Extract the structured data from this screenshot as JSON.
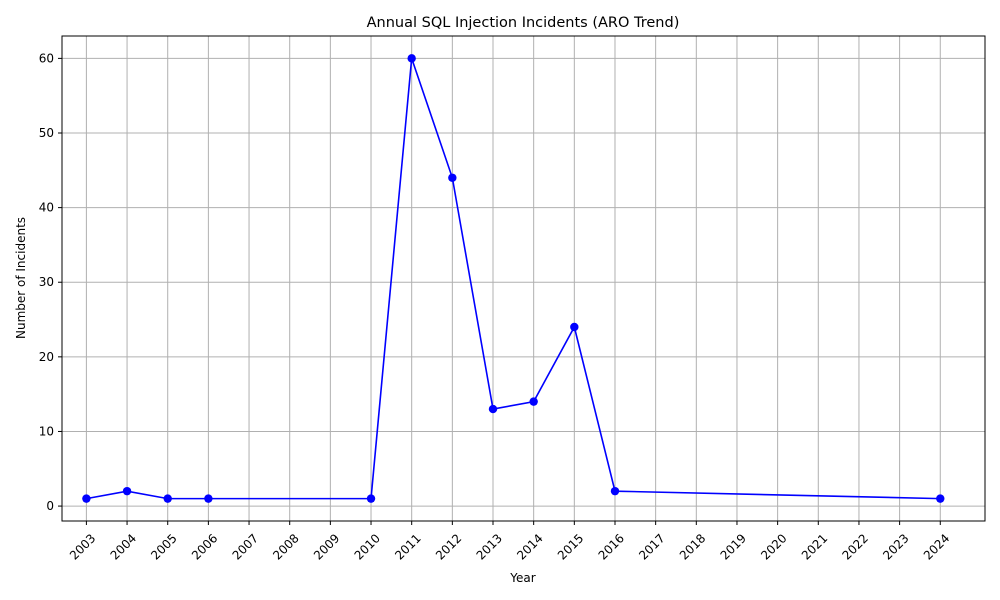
{
  "chart_data": {
    "type": "line",
    "title": "Annual SQL Injection Incidents (ARO Trend)",
    "xlabel": "Year",
    "ylabel": "Number of Incidents",
    "x_ticks": [
      "2003",
      "2004",
      "2005",
      "2006",
      "2007",
      "2008",
      "2009",
      "2010",
      "2011",
      "2012",
      "2013",
      "2014",
      "2015",
      "2016",
      "2017",
      "2018",
      "2019",
      "2020",
      "2021",
      "2022",
      "2023",
      "2024"
    ],
    "y_ticks": [
      0,
      10,
      20,
      30,
      40,
      50,
      60
    ],
    "xlim": [
      2002.4,
      2025.1
    ],
    "ylim": [
      -2,
      63
    ],
    "grid": true,
    "series": [
      {
        "color": "#0000ff",
        "marker": "circle",
        "x": [
          2003,
          2004,
          2005,
          2006,
          2010,
          2011,
          2012,
          2013,
          2014,
          2015,
          2016,
          2024
        ],
        "y": [
          1,
          2,
          1,
          1,
          1,
          60,
          44,
          13,
          14,
          24,
          2,
          1
        ]
      }
    ]
  }
}
